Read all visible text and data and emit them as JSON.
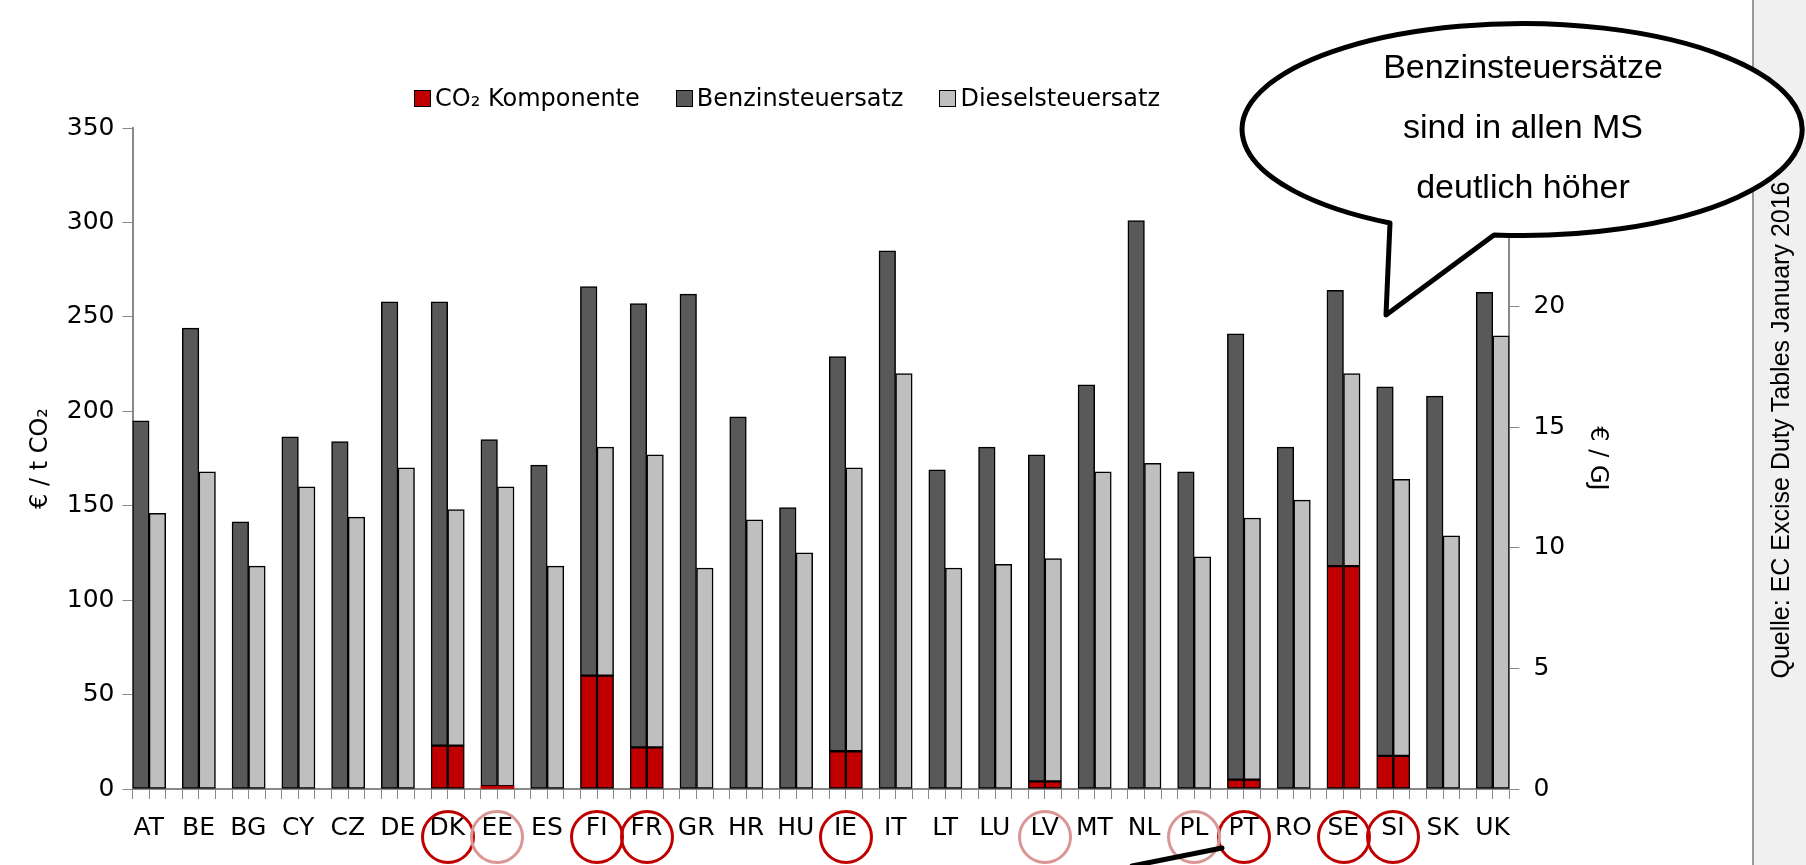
{
  "chart_data": {
    "type": "bar",
    "stacked": true,
    "ylabel": "€ / t CO₂",
    "y2label": "€ / GJ",
    "categories": [
      "AT",
      null,
      null,
      "BE",
      null,
      null,
      "BG",
      null,
      null,
      "CY",
      null,
      null,
      "CZ",
      null,
      null,
      "DE",
      null,
      null,
      "DK",
      null,
      null,
      "EE",
      null,
      null,
      "ES",
      null,
      null,
      "FI",
      null,
      null,
      "FR",
      null,
      null,
      "GR",
      null,
      null,
      "HR",
      null,
      null,
      "HU",
      null,
      null,
      "IE",
      null,
      null,
      "IT",
      null,
      null,
      "LT",
      null,
      null,
      "LU",
      null,
      null,
      "LV",
      null,
      null,
      "MT",
      null,
      null,
      "NL",
      null,
      null,
      "PL",
      null,
      null,
      "PT",
      null,
      null,
      "RO",
      null,
      null,
      "SE",
      null,
      null,
      "SI",
      null,
      null,
      "SK",
      null,
      null,
      "UK",
      null
    ],
    "series": [
      {
        "name": "CO₂ Komponente",
        "color": "#c00000",
        "values": [
          null,
          null,
          null,
          null,
          null,
          null,
          null,
          null,
          null,
          null,
          null,
          null,
          null,
          null,
          null,
          null,
          null,
          null,
          23,
          23,
          null,
          1.5,
          1.5,
          null,
          null,
          null,
          null,
          60,
          60,
          null,
          22,
          22,
          null,
          null,
          null,
          null,
          null,
          null,
          null,
          null,
          null,
          null,
          20,
          20,
          null,
          null,
          null,
          null,
          null,
          null,
          null,
          null,
          null,
          null,
          4,
          4,
          null,
          null,
          null,
          null,
          null,
          null,
          null,
          null,
          null,
          null,
          5,
          5,
          null,
          null,
          null,
          null,
          118,
          118,
          null,
          17.5,
          17.5,
          null,
          null,
          null,
          null,
          null,
          null
        ]
      },
      {
        "name": "Benzinsteuersatz",
        "color": "#595959",
        "values": [
          195,
          null,
          null,
          244,
          null,
          null,
          141.5,
          null,
          null,
          186.5,
          null,
          null,
          184,
          null,
          null,
          258,
          null,
          null,
          235,
          null,
          null,
          183.5,
          null,
          null,
          171.5,
          null,
          null,
          206,
          null,
          null,
          235,
          null,
          null,
          262,
          null,
          null,
          197,
          null,
          null,
          149,
          null,
          null,
          209,
          null,
          null,
          285,
          null,
          null,
          169,
          null,
          null,
          181,
          null,
          null,
          173,
          null,
          null,
          214,
          null,
          null,
          301,
          null,
          null,
          168,
          null,
          null,
          236,
          null,
          null,
          181,
          null,
          null,
          146,
          null,
          null,
          195.5,
          null,
          null,
          208,
          null,
          null,
          263,
          null
        ]
      },
      {
        "name": "Dieselsteuersatz",
        "color": "#bfbfbf",
        "values": [
          null,
          146,
          null,
          null,
          168,
          null,
          null,
          118,
          null,
          null,
          160,
          null,
          null,
          144,
          null,
          null,
          170,
          null,
          null,
          125,
          null,
          null,
          158.5,
          null,
          null,
          118,
          null,
          null,
          121,
          null,
          null,
          155,
          null,
          null,
          117,
          null,
          null,
          142.5,
          null,
          null,
          125,
          null,
          null,
          150,
          null,
          null,
          220,
          null,
          null,
          117,
          null,
          null,
          119,
          null,
          null,
          118,
          null,
          null,
          168,
          null,
          null,
          172.5,
          null,
          null,
          123,
          null,
          null,
          138.5,
          null,
          null,
          153,
          null,
          null,
          102,
          null,
          null,
          146.5,
          null,
          null,
          134,
          null,
          null,
          240
        ]
      }
    ],
    "ylim": [
      0,
      350
    ],
    "yticks": [
      0,
      50,
      100,
      150,
      200,
      250,
      300,
      350
    ],
    "y2lim": [
      0,
      27.4
    ],
    "y2ticks": [
      0,
      5,
      10,
      15,
      20
    ],
    "grid": false,
    "legend": "top",
    "annotations": [
      "Benzinsteuersätze sind in allen MS deutlich höher",
      "Quelle: EC Excise Duty Tables January 2016"
    ]
  }
}
